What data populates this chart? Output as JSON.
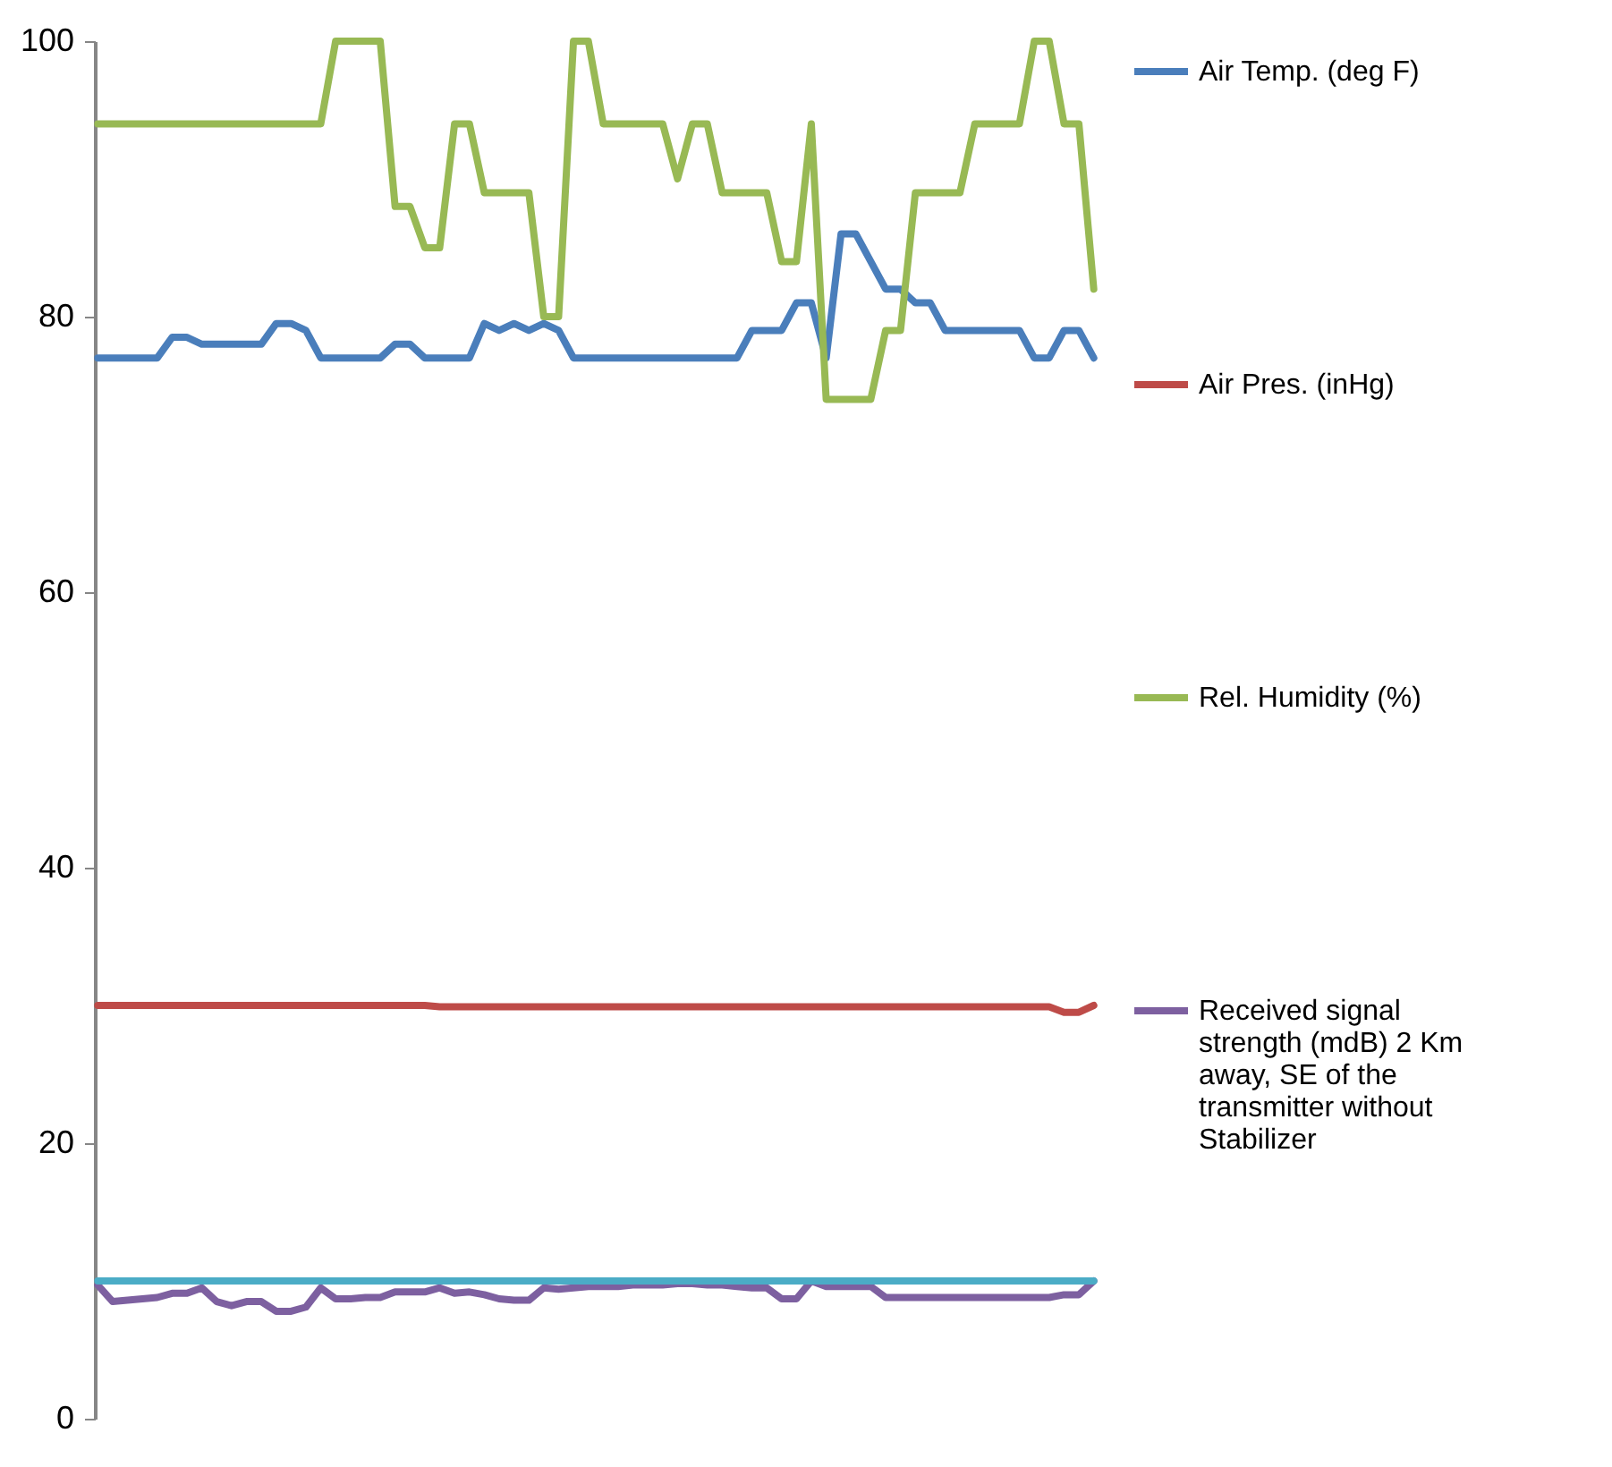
{
  "chart_data": {
    "type": "line",
    "categories": [
      null,
      null,
      null,
      null,
      null,
      null,
      null,
      null,
      null,
      null,
      null,
      null,
      null,
      null,
      null,
      null,
      null,
      null,
      null,
      null,
      null,
      null,
      null,
      null,
      null,
      null,
      null,
      null,
      null,
      null,
      null,
      null,
      null,
      null,
      null,
      null,
      null,
      null,
      null,
      null,
      null,
      null,
      null,
      null,
      null,
      null,
      null,
      null,
      null,
      null,
      null,
      null,
      null,
      null,
      null,
      null,
      null,
      null,
      null,
      null,
      null,
      null,
      null,
      null,
      null,
      null,
      null,
      null
    ],
    "series": [
      {
        "name": "Air Temp. (deg F)",
        "color": "#4a7ebb",
        "values": [
          77,
          77,
          77,
          77,
          77,
          78.5,
          78.5,
          78,
          78,
          78,
          78,
          78,
          79.5,
          79.5,
          79,
          77,
          77,
          77,
          77,
          77,
          78,
          78,
          77,
          77,
          77,
          77,
          79.5,
          79,
          79.5,
          79,
          79.5,
          79,
          77,
          77,
          77,
          77,
          77,
          77,
          77,
          77,
          77,
          77,
          77,
          77,
          79,
          79,
          79,
          81,
          81,
          77,
          86,
          86,
          84,
          82,
          82,
          81,
          81,
          79,
          79,
          79,
          79,
          79,
          79,
          77,
          77,
          79,
          79,
          77
        ]
      },
      {
        "name": "Air Pres. (inHg)",
        "color": "#be4b48",
        "values": [
          30,
          30,
          30,
          30,
          30,
          30,
          30,
          30,
          30,
          30,
          30,
          30,
          30,
          30,
          30,
          30,
          30,
          30,
          30,
          30,
          30,
          30,
          30,
          29.9,
          29.9,
          29.9,
          29.9,
          29.9,
          29.9,
          29.9,
          29.9,
          29.9,
          29.9,
          29.9,
          29.9,
          29.9,
          29.9,
          29.9,
          29.9,
          29.9,
          29.9,
          29.9,
          29.9,
          29.9,
          29.9,
          29.9,
          29.9,
          29.9,
          29.9,
          29.9,
          29.9,
          29.9,
          29.9,
          29.9,
          29.9,
          29.9,
          29.9,
          29.9,
          29.9,
          29.9,
          29.9,
          29.9,
          29.9,
          29.9,
          29.9,
          29.5,
          29.5,
          30
        ]
      },
      {
        "name": "Rel. Humidity (%)",
        "color": "#98b954",
        "values": [
          94,
          94,
          94,
          94,
          94,
          94,
          94,
          94,
          94,
          94,
          94,
          94,
          94,
          94,
          94,
          94,
          100,
          100,
          100,
          100,
          88,
          88,
          85,
          85,
          94,
          94,
          89,
          89,
          89,
          89,
          80,
          80,
          100,
          100,
          94,
          94,
          94,
          94,
          94,
          90,
          94,
          94,
          89,
          89,
          89,
          89,
          84,
          84,
          94,
          74,
          74,
          74,
          74,
          79,
          79,
          89,
          89,
          89,
          89,
          94,
          94,
          94,
          94,
          100,
          100,
          94,
          94,
          82
        ]
      },
      {
        "name": "Received signal strength (mdB) 2 Km away, SE of the transmitter without Stabilizer",
        "color": "#7d60a0",
        "values": [
          9.7,
          8.5,
          8.6,
          8.7,
          8.8,
          9.1,
          9.1,
          9.5,
          8.5,
          8.2,
          8.5,
          8.5,
          7.8,
          7.8,
          8.1,
          9.5,
          8.7,
          8.7,
          8.8,
          8.8,
          9.2,
          9.2,
          9.2,
          9.5,
          9.1,
          9.2,
          9.0,
          8.7,
          8.6,
          8.6,
          9.5,
          9.4,
          9.5,
          9.6,
          9.6,
          9.6,
          9.7,
          9.7,
          9.7,
          9.8,
          9.8,
          9.7,
          9.7,
          9.6,
          9.5,
          9.5,
          8.7,
          8.7,
          10,
          9.6,
          9.6,
          9.6,
          9.6,
          8.8,
          8.8,
          8.8,
          8.8,
          8.8,
          8.8,
          8.8,
          8.8,
          8.8,
          8.8,
          8.8,
          8.8,
          9,
          9,
          10
        ]
      },
      {
        "color": "#4bacc6",
        "values": [
          10,
          10,
          10,
          10,
          10,
          10,
          10,
          10,
          10,
          10,
          10,
          10,
          10,
          10,
          10,
          10,
          10,
          10,
          10,
          10,
          10,
          10,
          10,
          10,
          10,
          10,
          10,
          10,
          10,
          10,
          10,
          10,
          10,
          10,
          10,
          10,
          10,
          10,
          10,
          10,
          10,
          10,
          10,
          10,
          10,
          10,
          10,
          10,
          10,
          10,
          10,
          10,
          10,
          10,
          10,
          10,
          10,
          10,
          10,
          10,
          10,
          10,
          10,
          10,
          10,
          10,
          10,
          10
        ]
      }
    ],
    "ylim": [
      0,
      100
    ],
    "yticks": [
      0,
      20,
      40,
      60,
      80,
      100
    ],
    "grid": false,
    "legend": "right",
    "tick_labels": "y",
    "marker": "none",
    "line_style": "solid"
  }
}
